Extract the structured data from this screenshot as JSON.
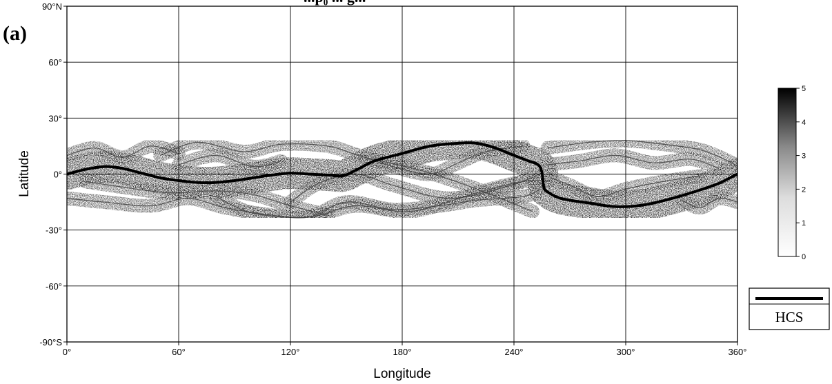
{
  "chart_data": {
    "type": "heatmap",
    "title": "...p₀ ... g...",
    "panel_label": "(a)",
    "xlabel": "Longitude",
    "ylabel": "Latitude",
    "xlim": [
      0,
      360
    ],
    "ylim": [
      -90,
      90
    ],
    "grid": true,
    "x_ticks": [
      0,
      60,
      120,
      180,
      240,
      300,
      360
    ],
    "x_tick_labels": [
      "0°",
      "60°",
      "120°",
      "180°",
      "240°",
      "300°",
      "360°"
    ],
    "y_ticks": [
      90,
      60,
      30,
      0,
      -30,
      -60,
      -90
    ],
    "y_tick_labels": [
      "90°N",
      "60°",
      "30°",
      "0°",
      "-30°",
      "-60°",
      "-90°S"
    ],
    "colorbar": {
      "range": [
        0,
        5
      ],
      "ticks": [
        0,
        1,
        2,
        3,
        4,
        5
      ],
      "tick_labels": [
        "0",
        "1",
        "2",
        "3",
        "4",
        "5"
      ],
      "colors": [
        "#ffffff",
        "#000000"
      ]
    },
    "legend": {
      "position": "right",
      "entries": [
        {
          "label": "HCS",
          "style": "thick black line"
        }
      ]
    },
    "hcs_line": {
      "lon": [
        0,
        10,
        20,
        30,
        40,
        50,
        60,
        70,
        80,
        90,
        100,
        110,
        120,
        130,
        140,
        148,
        155,
        165,
        180,
        195,
        210,
        220,
        230,
        240,
        248,
        253,
        255,
        256,
        258,
        265,
        280,
        295,
        310,
        325,
        340,
        350,
        355,
        360
      ],
      "lat": [
        0,
        2.5,
        4,
        3,
        0.5,
        -2,
        -3.5,
        -4.5,
        -4.5,
        -3.5,
        -2,
        -0.5,
        0.5,
        0,
        -0.5,
        -1,
        2,
        7,
        11,
        15,
        16.5,
        16.5,
        14,
        10,
        7,
        5,
        1,
        -7,
        -9.5,
        -13,
        -15.5,
        -17.5,
        -16.5,
        -13,
        -8.5,
        -5,
        -2.5,
        0
      ]
    },
    "neutral_lines": [
      {
        "lon": [
          0,
          20,
          45,
          65,
          85,
          110,
          130,
          150,
          175,
          200,
          220,
          245,
          254
        ],
        "lat": [
          -13,
          -15,
          -17,
          -13,
          -18,
          -22,
          -23,
          -15,
          -19,
          -17,
          -14,
          -12,
          -8
        ]
      },
      {
        "lon": [
          10,
          30,
          55,
          80,
          100,
          120,
          140
        ],
        "lat": [
          -4,
          -7,
          -10,
          -9,
          -11,
          -17,
          -22
        ]
      },
      {
        "lon": [
          50,
          70,
          95,
          115,
          140,
          160,
          190,
          220,
          250
        ],
        "lat": [
          10,
          17,
          12,
          16,
          15,
          9,
          2,
          -8,
          -20
        ]
      },
      {
        "lon": [
          80,
          100,
          130,
          155,
          185,
          220,
          245,
          258
        ],
        "lat": [
          -12,
          -21,
          -23,
          -17,
          -20,
          -10,
          -4,
          -4
        ]
      },
      {
        "lon": [
          258,
          280,
          300,
          320,
          340,
          355,
          360
        ],
        "lat": [
          14,
          17,
          18,
          16,
          13,
          7,
          4
        ]
      },
      {
        "lon": [
          258,
          275,
          295,
          315,
          335,
          350
        ],
        "lat": [
          5,
          7,
          10,
          6,
          8,
          3
        ]
      },
      {
        "lon": [
          260,
          270,
          285,
          300,
          320,
          340
        ],
        "lat": [
          -2,
          -6,
          -12,
          -8,
          -4,
          -1
        ]
      },
      {
        "lon": [
          160,
          175,
          195,
          210,
          225,
          245
        ],
        "lat": [
          9,
          4,
          0,
          6,
          12,
          15
        ]
      },
      {
        "lon": [
          120,
          135,
          155,
          175,
          205,
          235,
          252
        ],
        "lat": [
          -15,
          -5,
          0,
          -6,
          -13,
          -7,
          -1
        ]
      },
      {
        "lon": [
          0,
          15,
          30,
          45,
          60
        ],
        "lat": [
          10,
          14,
          9,
          15,
          11
        ]
      },
      {
        "lon": [
          330,
          340,
          350,
          360
        ],
        "lat": [
          -14,
          -18,
          -13,
          -15
        ]
      },
      {
        "lon": [
          60,
          80,
          100,
          115
        ],
        "lat": [
          5,
          10,
          4,
          7
        ]
      }
    ]
  }
}
